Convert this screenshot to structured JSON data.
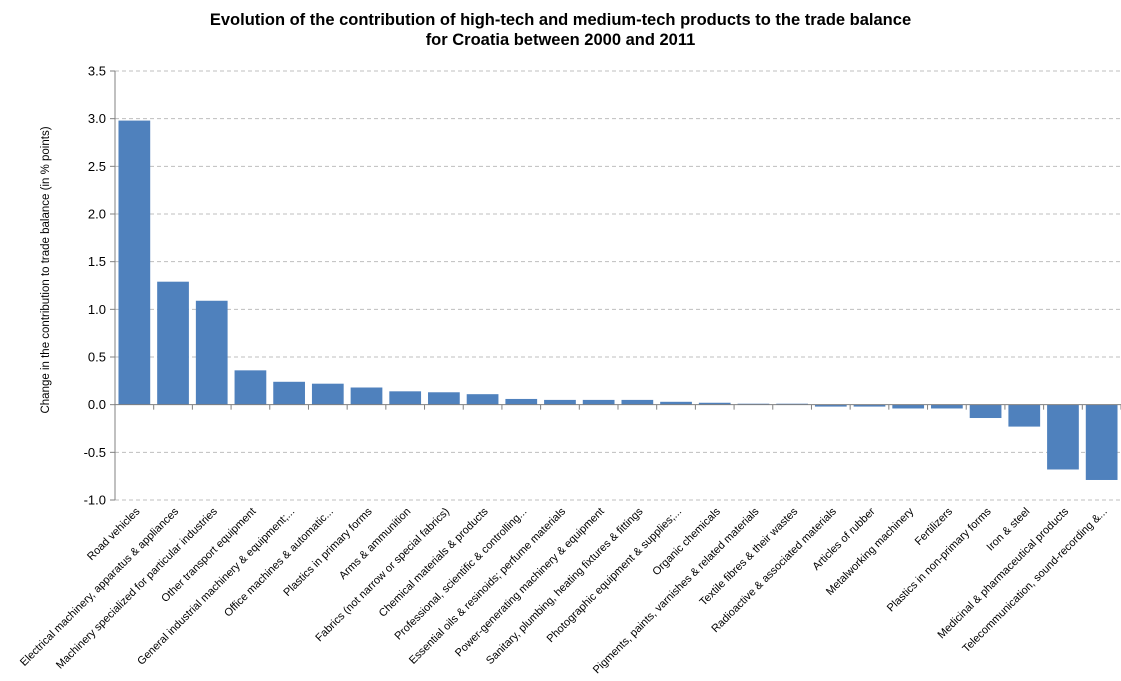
{
  "chart_data": {
    "type": "bar",
    "title": "Evolution of the contribution of high-tech and medium-tech products to the trade balance",
    "subtitle": "for Croatia between 2000 and 2011",
    "xlabel": "",
    "ylabel": "Change in the contribution to trade balance (in % points)",
    "ylim": [
      -1.0,
      3.5
    ],
    "ytick_step": 0.5,
    "yticks": [
      "-1.0",
      "-0.5",
      "0.0",
      "0.5",
      "1.0",
      "1.5",
      "2.0",
      "2.5",
      "3.0",
      "3.5"
    ],
    "grid": true,
    "legend": false,
    "bar_color": "#4f81bd",
    "categories": [
      "Road vehicles",
      "Electrical machinery, apparatus & appliances",
      "Machinery specialized for particular industries",
      "Other transport equipment",
      "General industrial machinery & equipment;...",
      "Office machines & automatic...",
      "Plastics in primary forms",
      "Arms & ammunition",
      "Fabrics (not narrow or special fabrics)",
      "Chemical materials & products",
      "Professional, scientific & controlling...",
      "Essential oils & resinoids; perfume materials",
      "Power-generating machinery & equipment",
      "Sanitary, plumbing, heating fixtures & fittings",
      "Photographic equipment & supplies;...",
      "Organic chemicals",
      "Pigments, paints, varnishes & related materials",
      "Textile fibres & their wastes",
      "Radioactive & associated materials",
      "Articles of rubber",
      "Metalworking machinery",
      "Fertilizers",
      "Plastics in non-primary forms",
      "Iron & steel",
      "Medicinal & pharmaceutical products",
      "Telecommunication, sound-recording &..."
    ],
    "values": [
      2.98,
      1.29,
      1.09,
      0.36,
      0.24,
      0.22,
      0.18,
      0.14,
      0.13,
      0.11,
      0.06,
      0.05,
      0.05,
      0.05,
      0.03,
      0.02,
      0.01,
      0.01,
      -0.02,
      -0.02,
      -0.04,
      -0.04,
      -0.14,
      -0.23,
      -0.68,
      -0.79
    ]
  }
}
